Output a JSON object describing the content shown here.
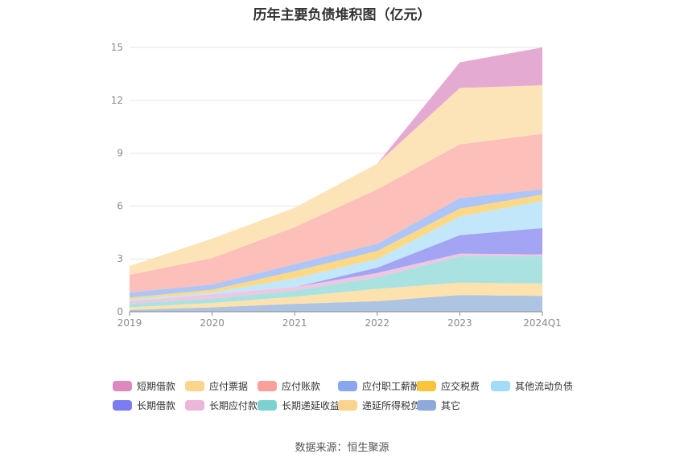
{
  "title": "历年主要负债堆积图（亿元）",
  "source": "数据来源：恒生聚源",
  "chart_data": {
    "type": "area",
    "stacked": true,
    "title": "历年主要负债堆积图（亿元）",
    "categories": [
      "2019",
      "2020",
      "2021",
      "2022",
      "2023",
      "2024Q1"
    ],
    "ylim": [
      0,
      15
    ],
    "yticks": [
      0,
      3,
      6,
      9,
      12,
      15
    ],
    "grid": true,
    "legend_position": "bottom",
    "series": [
      {
        "name": "其它",
        "color": "#aec4e3",
        "values": [
          0.1,
          0.25,
          0.45,
          0.6,
          0.95,
          0.9
        ]
      },
      {
        "name": "递延所得税负债",
        "color": "#fde2ad",
        "values": [
          0.15,
          0.25,
          0.4,
          0.7,
          0.7,
          0.7
        ]
      },
      {
        "name": "长期递延收益",
        "color": "#a9e2e0",
        "values": [
          0.2,
          0.25,
          0.35,
          0.65,
          1.5,
          1.55
        ]
      },
      {
        "name": "长期应付款合计",
        "color": "#f0c6e0",
        "values": [
          0.15,
          0.25,
          0.2,
          0.25,
          0.15,
          0.1
        ]
      },
      {
        "name": "长期借款",
        "color": "#a4a4f5",
        "values": [
          0,
          0,
          0,
          0.3,
          1.05,
          1.5
        ]
      },
      {
        "name": "其他流动负债",
        "color": "#c2e7fb",
        "values": [
          0.1,
          0.1,
          0.5,
          0.5,
          1.05,
          1.55
        ]
      },
      {
        "name": "应交税费",
        "color": "#fdd985",
        "values": [
          0.1,
          0.15,
          0.4,
          0.45,
          0.45,
          0.35
        ]
      },
      {
        "name": "应付职工薪酬",
        "color": "#aec5f7",
        "values": [
          0.3,
          0.3,
          0.4,
          0.4,
          0.6,
          0.3
        ]
      },
      {
        "name": "应付账款",
        "color": "#fdbfba",
        "values": [
          1.0,
          1.5,
          2.1,
          3.1,
          3.05,
          3.15
        ]
      },
      {
        "name": "应付票据",
        "color": "#fde4b8",
        "values": [
          0.5,
          1.1,
          1.1,
          1.45,
          3.2,
          2.75
        ]
      },
      {
        "name": "短期借款",
        "color": "#e4aad2",
        "values": [
          0,
          0,
          0,
          0,
          1.45,
          2.15
        ]
      }
    ]
  },
  "legend": [
    {
      "name": "短期借款",
      "color": "#de88c0"
    },
    {
      "name": "应付票据",
      "color": "#fcd58b"
    },
    {
      "name": "应付账款",
      "color": "#f8a19a"
    },
    {
      "name": "应付职工薪酬",
      "color": "#8aa6f1"
    },
    {
      "name": "应交税费",
      "color": "#fbc43b"
    },
    {
      "name": "其他流动负债",
      "color": "#a3dcf8"
    },
    {
      "name": "长期借款",
      "color": "#7b7cf0"
    },
    {
      "name": "长期应付款合计",
      "color": "#ebb6d7"
    },
    {
      "name": "长期递延收益",
      "color": "#7dd1d0"
    },
    {
      "name": "递延所得税负债",
      "color": "#fcd38c"
    },
    {
      "name": "其它",
      "color": "#8daadb"
    }
  ]
}
